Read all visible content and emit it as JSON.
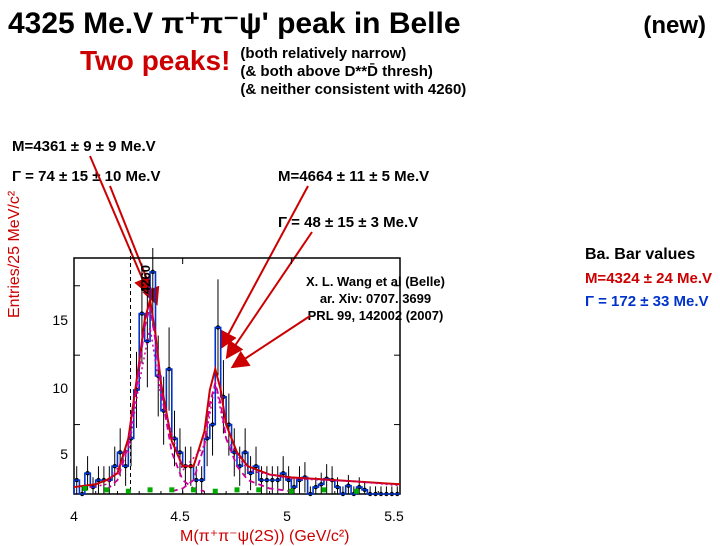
{
  "title": {
    "main": "4325 Me.V π⁺π⁻ψ' peak in Belle",
    "new": "(new)"
  },
  "subtitle": {
    "two_peaks": "Two peaks!",
    "two_peaks_color": "#cc0000",
    "notes": [
      "(both relatively narrow)",
      "(& both above D**D̄ thresh)",
      "(& neither consistent with 4260)"
    ]
  },
  "annotations": {
    "peak1_mass": "M=4361 ± 9 ± 9 Me.V",
    "peak1_width": "Γ = 74 ± 15 ± 10  Me.V",
    "peak2_mass": "M=4664 ± 11 ± 5 Me.V",
    "peak2_width": "Γ = 48 ± 15 ± 3  Me.V",
    "marker_4260": "4260",
    "citation": {
      "l1": "X. L. Wang et al (Belle)",
      "l2": "ar. Xiv: 0707. 3699",
      "l3": "PRL 99, 142002 (2007)"
    }
  },
  "babar": {
    "header": "Ba. Bar values",
    "mass": "M=4324 ± 24 Me.V",
    "mass_color": "#cc0000",
    "width": "Γ = 172 ± 33 Me.V",
    "width_color": "#0033cc"
  },
  "chart": {
    "type": "histogram",
    "x_label": "M(π⁺π⁻ψ(2S))  (GeV/c²)",
    "y_label": "Entries/25 MeV/c²",
    "label_color": "#cc0000",
    "xlim": [
      4.0,
      5.5
    ],
    "ylim": [
      0,
      17
    ],
    "xticks": [
      4,
      4.5,
      5,
      5.5
    ],
    "yticks": [
      5,
      10,
      15
    ],
    "tick_color": "#000000",
    "axis_color": "#000000",
    "background": "#ffffff",
    "grid": false,
    "hist": {
      "bin_width_gev": 0.025,
      "line_color": "#0033cc",
      "fill": "none",
      "x_start": 4.0,
      "counts": [
        1,
        0,
        1.5,
        0.5,
        1,
        1,
        1,
        2,
        3,
        2,
        4,
        7.5,
        13,
        11,
        16,
        8.5,
        6,
        9,
        4,
        3,
        2,
        2,
        1,
        1,
        4,
        5,
        12,
        7,
        5,
        3,
        2,
        3,
        1.5,
        2,
        1,
        1,
        1,
        1,
        1.5,
        1,
        0.5,
        1,
        1.2,
        0,
        0.5,
        0.7,
        1.1,
        1,
        0.5,
        0,
        0.6,
        0,
        0.5,
        0.3,
        0,
        0,
        0,
        0,
        0,
        0
      ]
    },
    "errorbars": {
      "color": "#000000",
      "marker": "circle",
      "marker_fill": "#000000",
      "marker_size": 3
    },
    "fits": [
      {
        "name": "total",
        "style": "solid",
        "color": "#cc0000",
        "width": 2,
        "x": [
          4.0,
          4.1,
          4.15,
          4.2,
          4.25,
          4.3,
          4.325,
          4.35,
          4.375,
          4.4,
          4.45,
          4.5,
          4.55,
          4.6,
          4.625,
          4.65,
          4.675,
          4.7,
          4.75,
          4.8,
          4.9,
          5.0,
          5.2,
          5.5
        ],
        "y": [
          0.5,
          0.7,
          1.0,
          1.5,
          4.0,
          9.5,
          12.5,
          14.0,
          11.5,
          8.0,
          3.8,
          2.0,
          2.0,
          4.5,
          7.5,
          9.0,
          7.5,
          5.0,
          3.0,
          2.0,
          1.4,
          1.2,
          1.0,
          0.7
        ]
      },
      {
        "name": "bw1",
        "style": "dashed",
        "color": "#cc0099",
        "width": 1.8,
        "x": [
          4.15,
          4.2,
          4.25,
          4.3,
          4.325,
          4.35,
          4.375,
          4.4,
          4.45,
          4.5,
          4.55,
          4.6
        ],
        "y": [
          0.3,
          1.0,
          3.5,
          9.0,
          12.0,
          13.5,
          11.0,
          7.5,
          3.0,
          1.0,
          0.4,
          0.2
        ]
      },
      {
        "name": "bw2",
        "style": "dashed",
        "color": "#cc0099",
        "width": 1.8,
        "x": [
          4.45,
          4.5,
          4.55,
          4.6,
          4.625,
          4.65,
          4.675,
          4.7,
          4.75,
          4.8,
          4.9,
          5.0
        ],
        "y": [
          0.2,
          0.4,
          1.0,
          3.5,
          6.5,
          8.0,
          6.5,
          4.0,
          2.0,
          1.0,
          0.4,
          0.2
        ]
      },
      {
        "name": "alt",
        "style": "dotted",
        "color": "#cc0099",
        "width": 1.5,
        "x": [
          4.05,
          4.15,
          4.25,
          4.3,
          4.35,
          4.4,
          4.5,
          4.6,
          4.65,
          4.7,
          4.8,
          5.0,
          5.3,
          5.5
        ],
        "y": [
          0.4,
          0.7,
          3.0,
          8.0,
          12.0,
          7.0,
          1.7,
          3.5,
          8.0,
          4.0,
          1.7,
          1.1,
          0.9,
          0.6
        ]
      }
    ],
    "bg_markers": {
      "color": "#00aa00",
      "shape": "square",
      "size": 5,
      "points": [
        {
          "x": 4.05,
          "y": 0.4
        },
        {
          "x": 4.15,
          "y": 0.3
        },
        {
          "x": 4.25,
          "y": 0.2
        },
        {
          "x": 4.35,
          "y": 0.3
        },
        {
          "x": 4.45,
          "y": 0.3
        },
        {
          "x": 4.55,
          "y": 0.3
        },
        {
          "x": 4.65,
          "y": 0.2
        },
        {
          "x": 4.75,
          "y": 0.3
        },
        {
          "x": 4.85,
          "y": 0.3
        },
        {
          "x": 5.0,
          "y": 0.2
        },
        {
          "x": 5.15,
          "y": 0.3
        },
        {
          "x": 5.3,
          "y": 0.2
        }
      ]
    },
    "vline_4260": {
      "x": 4.26,
      "color": "#000000",
      "style": "dashed",
      "width": 1
    }
  },
  "arrows": {
    "color": "#cc0000",
    "head_fill": "#cc0000"
  }
}
